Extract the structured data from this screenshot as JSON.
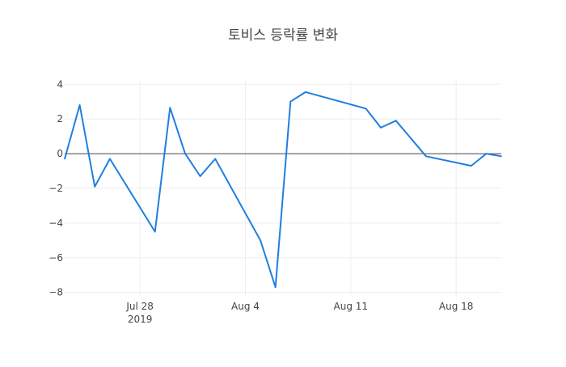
{
  "chart_data": {
    "type": "line",
    "title": "토비스 등락률 변화",
    "xlabel": "",
    "ylabel": "",
    "x_ticks": [
      {
        "date": "2019-07-28",
        "label": "Jul 28",
        "sublabel": "2019"
      },
      {
        "date": "2019-08-04",
        "label": "Aug 4",
        "sublabel": ""
      },
      {
        "date": "2019-08-11",
        "label": "Aug 11",
        "sublabel": ""
      },
      {
        "date": "2019-08-18",
        "label": "Aug 18",
        "sublabel": ""
      }
    ],
    "y_ticks": [
      4,
      2,
      0,
      -2,
      -4,
      -6,
      -8
    ],
    "y_tick_labels": [
      "4",
      "2",
      "0",
      "−2",
      "−4",
      "−6",
      "−8"
    ],
    "xlim": [
      "2019-07-23",
      "2019-08-21"
    ],
    "ylim": [
      -8.2,
      4.2
    ],
    "grid": true,
    "zero_line": true,
    "line_color": "#1f7fe0",
    "series": [
      {
        "x": [
          "2019-07-23",
          "2019-07-24",
          "2019-07-25",
          "2019-07-26",
          "2019-07-29",
          "2019-07-30",
          "2019-07-31",
          "2019-08-01",
          "2019-08-02",
          "2019-08-05",
          "2019-08-06",
          "2019-08-07",
          "2019-08-08",
          "2019-08-12",
          "2019-08-13",
          "2019-08-14",
          "2019-08-16",
          "2019-08-19",
          "2019-08-20",
          "2019-08-21"
        ],
        "values": [
          -0.3,
          2.8,
          -1.9,
          -0.3,
          -4.5,
          2.65,
          0.0,
          -1.3,
          -0.3,
          -5.0,
          -7.7,
          3.0,
          3.55,
          2.6,
          1.5,
          1.9,
          -0.15,
          -0.7,
          0.0,
          -0.15
        ]
      }
    ]
  }
}
